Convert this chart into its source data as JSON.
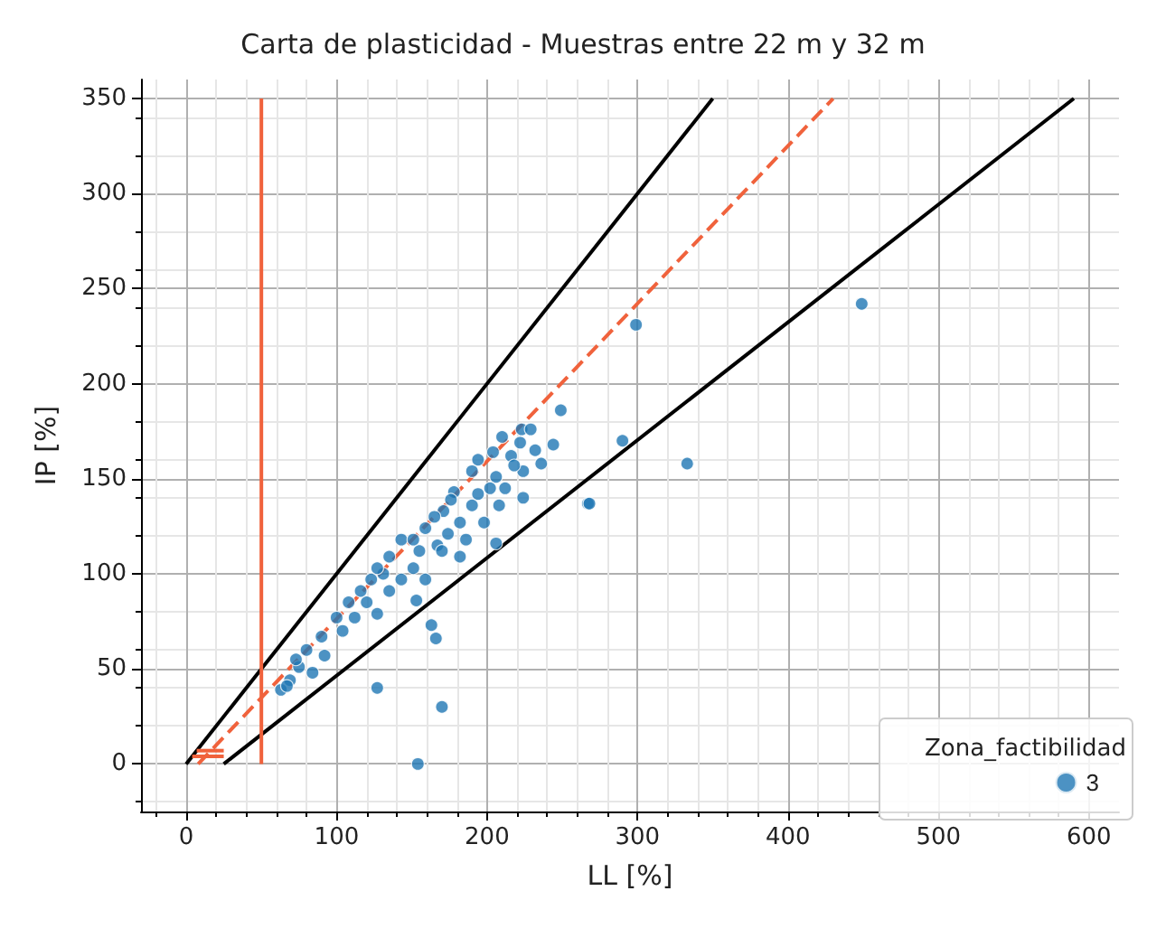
{
  "chart_data": {
    "type": "scatter",
    "title": "Carta de plasticidad - Muestras entre 22 m y 32 m",
    "xlabel": "LL [%]",
    "ylabel": "IP [%]",
    "legend_title": "Zona_factibilidad",
    "legend": "bottom right",
    "grid": true,
    "xlim": [
      -30,
      620
    ],
    "xticks": [
      0,
      100,
      200,
      300,
      400,
      500,
      600
    ],
    "ylim": [
      -25,
      360
    ],
    "yticks": [
      0,
      50,
      100,
      150,
      200,
      250,
      300,
      350
    ],
    "series": [
      {
        "type": "line",
        "marker": "none",
        "color": "#000000",
        "line_style": "solid",
        "x": [
          0,
          350
        ],
        "values": [
          0,
          350
        ]
      },
      {
        "type": "line",
        "marker": "none",
        "color": "#000000",
        "line_style": "solid",
        "x": [
          25,
          590
        ],
        "values": [
          0,
          350
        ]
      },
      {
        "type": "line",
        "marker": "none",
        "color": "#f0623c",
        "line_style": "dashed",
        "x": [
          8,
          430
        ],
        "values": [
          0,
          350
        ]
      },
      {
        "type": "line",
        "marker": "none",
        "color": "#f0623c",
        "line_style": "solid",
        "x": [
          50,
          50
        ],
        "values": [
          0,
          350
        ]
      },
      {
        "type": "line",
        "marker": "none",
        "color": "#f0623c",
        "line_style": "solid",
        "x": [
          4,
          25
        ],
        "values": [
          4,
          4
        ]
      },
      {
        "type": "line",
        "marker": "none",
        "color": "#f0623c",
        "line_style": "solid",
        "x": [
          7,
          25
        ],
        "values": [
          7,
          7
        ]
      },
      {
        "name": "3",
        "marker": "circle",
        "color": "#1f77b4",
        "x": [
          249,
          244,
          290,
          267,
          223,
          229,
          232,
          236,
          224,
          224,
          206,
          204,
          216,
          206,
          190,
          194,
          178,
          198,
          182,
          171,
          159,
          182,
          167,
          155,
          143,
          151,
          135,
          131,
          143,
          123,
          120,
          127,
          112,
          100,
          104,
          90,
          80,
          92,
          75,
          69,
          63,
          84,
          163,
          166,
          127,
          170,
          153,
          135,
          116,
          159,
          170,
          186,
          165,
          190,
          174,
          208,
          212,
          218,
          222,
          210,
          194,
          202,
          176,
          151,
          127,
          108,
          73,
          67,
          299,
          333,
          268,
          449,
          154
        ],
        "values": [
          186,
          168,
          170,
          137,
          176,
          176,
          165,
          158,
          154,
          140,
          116,
          164,
          162,
          151,
          154,
          142,
          143,
          127,
          127,
          133,
          124,
          109,
          115,
          112,
          118,
          103,
          109,
          100,
          97,
          97,
          85,
          79,
          77,
          77,
          70,
          67,
          60,
          57,
          51,
          44,
          39,
          48,
          73,
          66,
          40,
          30,
          86,
          91,
          91,
          97,
          112,
          118,
          130,
          136,
          121,
          136,
          145,
          157,
          169,
          172,
          160,
          145,
          139,
          118,
          103,
          85,
          55,
          41,
          231,
          158,
          137,
          242,
          0
        ]
      }
    ]
  }
}
